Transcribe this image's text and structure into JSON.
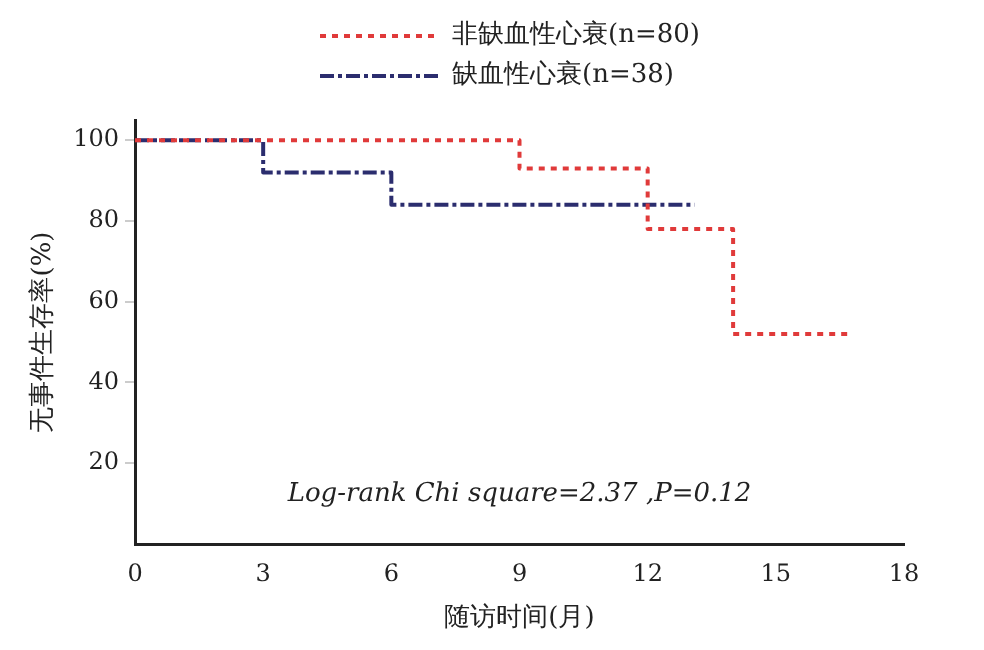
{
  "chart_data": {
    "type": "step",
    "xlabel": "随访时间(月)",
    "ylabel": "无事件生存率(%)",
    "xlim": [
      0,
      18
    ],
    "xticks": [
      0,
      3,
      6,
      9,
      12,
      15,
      18
    ],
    "ylim": [
      0,
      105
    ],
    "yticks": [
      20,
      40,
      60,
      80,
      100
    ],
    "grid": false,
    "legend": "top",
    "marker": "none",
    "series": [
      {
        "name": "非缺血性心衰(n=80)",
        "color": "#e03a3a",
        "line_style": "dotted",
        "x": [
          0,
          9,
          12,
          14,
          16.8
        ],
        "values": [
          100,
          93,
          78,
          52,
          52
        ]
      },
      {
        "name": "缺血性心衰(n=38)",
        "color": "#2b2d6e",
        "line_style": "dashed",
        "x": [
          0,
          3,
          6,
          13.1
        ],
        "values": [
          100,
          92,
          84,
          84
        ]
      }
    ],
    "annotations": [
      "Log-rank Chi square=2.37 ,P=0.12"
    ]
  }
}
